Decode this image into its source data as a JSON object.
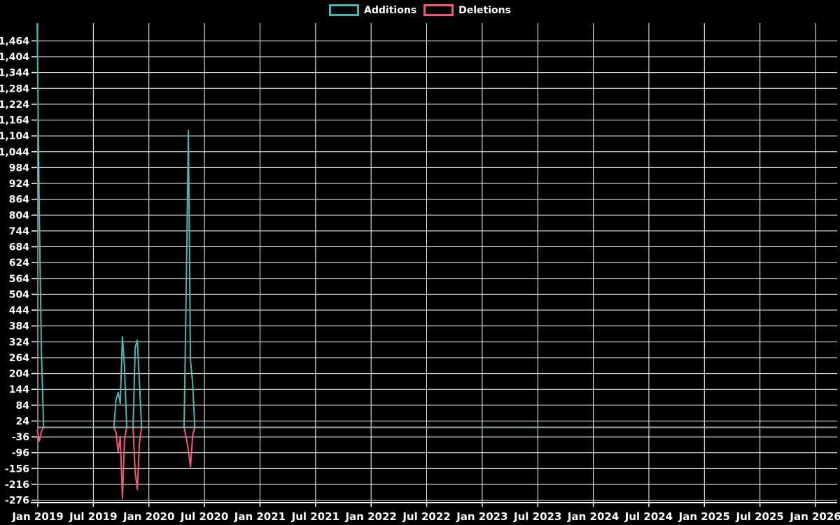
{
  "legend": {
    "items": [
      {
        "label": "Additions",
        "color": "#46b8b4"
      },
      {
        "label": "Deletions",
        "color": "#f25870"
      }
    ]
  },
  "chart_data": {
    "type": "line",
    "title": "",
    "background": "#000000",
    "grid": true,
    "grid_color": "#ffffff",
    "axis_color": "#ffffff",
    "text_color": "#ffffff",
    "legend_position": "top-center",
    "baseline_overlap_color": "#8caab0",
    "x_axis": {
      "tick_labels": [
        "Jan 2019",
        "Jul 2019",
        "Jan 2020",
        "Jul 2020",
        "Jan 2021",
        "Jul 2021",
        "Jan 2022",
        "Jul 2022",
        "Jan 2023",
        "Jul 2023",
        "Jan 2024",
        "Jul 2024",
        "Jan 2025",
        "Jul 2025",
        "Jan 2026"
      ]
    },
    "y_axis": {
      "tick_values": [
        1464,
        1404,
        1344,
        1284,
        1224,
        1164,
        1104,
        1044,
        984,
        924,
        864,
        804,
        744,
        684,
        624,
        564,
        504,
        444,
        384,
        324,
        264,
        204,
        144,
        84,
        24,
        -36,
        -96,
        -156,
        -216,
        -276
      ],
      "tick_step": 60,
      "tick_format": "thousands-comma"
    },
    "sampling": {
      "interval": "weekly",
      "zero_fill": true,
      "x_start": "2018-12-30",
      "x_end": "2026-05-10"
    },
    "series": [
      {
        "name": "Additions",
        "color": "#46b8b4",
        "points": [
          [
            "2018-12-30",
            1530
          ],
          [
            "2019-01-06",
            790
          ],
          [
            "2019-01-13",
            285
          ],
          [
            "2019-09-15",
            105
          ],
          [
            "2019-09-22",
            132
          ],
          [
            "2019-09-29",
            90
          ],
          [
            "2019-10-06",
            343
          ],
          [
            "2019-10-13",
            230
          ],
          [
            "2019-11-17",
            305
          ],
          [
            "2019-11-24",
            330
          ],
          [
            "2019-12-01",
            170
          ],
          [
            "2020-05-03",
            530
          ],
          [
            "2020-05-10",
            1124
          ],
          [
            "2020-05-17",
            253
          ],
          [
            "2020-05-24",
            168
          ]
        ]
      },
      {
        "name": "Deletions",
        "color": "#f25870",
        "points": [
          [
            "2018-12-30",
            -10
          ],
          [
            "2019-01-06",
            -52
          ],
          [
            "2019-01-13",
            -15
          ],
          [
            "2019-09-15",
            -20
          ],
          [
            "2019-09-22",
            -92
          ],
          [
            "2019-09-29",
            -35
          ],
          [
            "2019-10-06",
            -270
          ],
          [
            "2019-10-13",
            -45
          ],
          [
            "2019-11-17",
            -172
          ],
          [
            "2019-11-24",
            -235
          ],
          [
            "2019-12-01",
            -60
          ],
          [
            "2020-05-03",
            -40
          ],
          [
            "2020-05-10",
            -86
          ],
          [
            "2020-05-17",
            -150
          ],
          [
            "2020-05-24",
            -30
          ]
        ]
      }
    ]
  }
}
